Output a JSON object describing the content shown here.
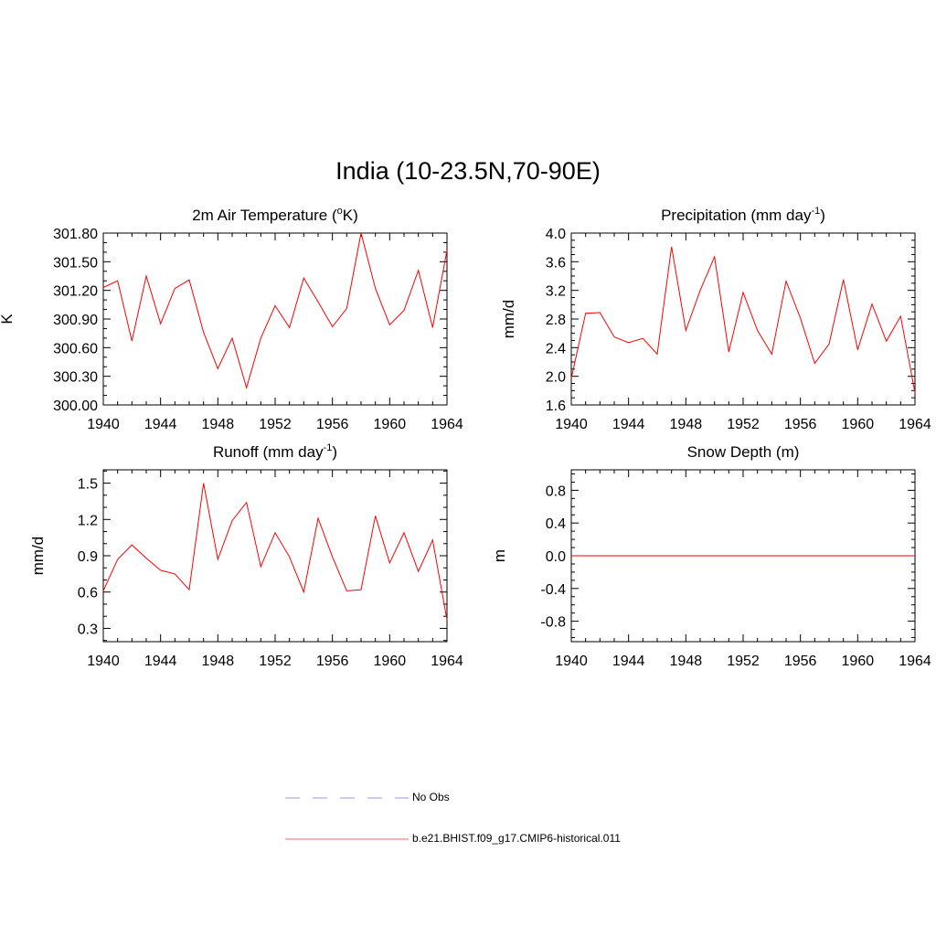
{
  "figure_title": "India (10-23.5N,70-90E)",
  "legend": [
    {
      "label": "No Obs",
      "color": "#aaaaee",
      "dash": true
    },
    {
      "label": "b.e21.BHIST.f09_g17.CMIP6-historical.011",
      "color": "#ee8888",
      "dash": false
    }
  ],
  "chart_data": [
    {
      "type": "line",
      "title": "2m Air Temperature (",
      "title_sup": "o",
      "title_tail": "K)",
      "ylabel": "K",
      "xlim": [
        1940,
        1964
      ],
      "ylim": [
        300.0,
        301.8
      ],
      "xticks": [
        1940,
        1944,
        1948,
        1952,
        1956,
        1960,
        1964
      ],
      "yticks": [
        300.0,
        300.3,
        300.6,
        300.9,
        301.2,
        301.5,
        301.8
      ],
      "ytick_labels": [
        "300.00",
        "300.30",
        "300.60",
        "300.90",
        "301.20",
        "301.50",
        "301.80"
      ],
      "yminor": 0.1,
      "color": "#ff0000",
      "series": [
        {
          "x": [
            1940,
            1941,
            1942,
            1943,
            1944,
            1945,
            1946,
            1947,
            1948,
            1949,
            1950,
            1951,
            1952,
            1953,
            1954,
            1955,
            1956,
            1957,
            1958,
            1959,
            1960,
            1961,
            1962,
            1963,
            1964
          ],
          "values": [
            301.23,
            301.3,
            300.67,
            301.35,
            300.85,
            301.22,
            301.31,
            300.76,
            300.38,
            300.7,
            300.18,
            300.7,
            301.04,
            300.81,
            301.33,
            301.08,
            300.82,
            301.01,
            301.8,
            301.22,
            300.84,
            300.99,
            301.41,
            300.81,
            301.62
          ]
        }
      ]
    },
    {
      "type": "line",
      "title": "Precipitation (mm day",
      "title_sup": "-1",
      "title_tail": ")",
      "ylabel": "mm/d",
      "xlim": [
        1940,
        1964
      ],
      "ylim": [
        1.6,
        4.0
      ],
      "xticks": [
        1940,
        1944,
        1948,
        1952,
        1956,
        1960,
        1964
      ],
      "yticks": [
        1.6,
        2.0,
        2.4,
        2.8,
        3.2,
        3.6,
        4.0
      ],
      "ytick_labels": [
        "1.6",
        "2.0",
        "2.4",
        "2.8",
        "3.2",
        "3.6",
        "4.0"
      ],
      "yminor": 0.1,
      "color": "#ff0000",
      "series": [
        {
          "x": [
            1940,
            1941,
            1942,
            1943,
            1944,
            1945,
            1946,
            1947,
            1948,
            1949,
            1950,
            1951,
            1952,
            1953,
            1954,
            1955,
            1956,
            1957,
            1958,
            1959,
            1960,
            1961,
            1962,
            1963,
            1964
          ],
          "values": [
            1.97,
            2.88,
            2.89,
            2.55,
            2.47,
            2.53,
            2.31,
            3.81,
            2.64,
            3.2,
            3.67,
            2.34,
            3.17,
            2.64,
            2.31,
            3.33,
            2.81,
            2.18,
            2.45,
            3.35,
            2.37,
            3.01,
            2.49,
            2.84,
            1.77
          ]
        }
      ]
    },
    {
      "type": "line",
      "title": "Runoff (mm day",
      "title_sup": "-1",
      "title_tail": ")",
      "ylabel": "mm/d",
      "xlim": [
        1940,
        1964
      ],
      "ylim": [
        0.19,
        1.61
      ],
      "xticks": [
        1940,
        1944,
        1948,
        1952,
        1956,
        1960,
        1964
      ],
      "yticks": [
        0.3,
        0.6,
        0.9,
        1.2,
        1.5
      ],
      "ytick_labels": [
        "0.3",
        "0.6",
        "0.9",
        "1.2",
        "1.5"
      ],
      "yminor": 0.1,
      "color": "#ff0000",
      "series": [
        {
          "x": [
            1940,
            1941,
            1942,
            1943,
            1944,
            1945,
            1946,
            1947,
            1948,
            1949,
            1950,
            1951,
            1952,
            1953,
            1954,
            1955,
            1956,
            1957,
            1958,
            1959,
            1960,
            1961,
            1962,
            1963,
            1964
          ],
          "values": [
            0.61,
            0.87,
            0.99,
            0.88,
            0.78,
            0.75,
            0.62,
            1.5,
            0.87,
            1.19,
            1.34,
            0.81,
            1.09,
            0.89,
            0.6,
            1.21,
            0.89,
            0.61,
            0.62,
            1.23,
            0.84,
            1.09,
            0.77,
            1.03,
            0.37
          ]
        }
      ]
    },
    {
      "type": "line",
      "title": "Snow Depth (m)",
      "title_sup": "",
      "title_tail": "",
      "ylabel": "m",
      "xlim": [
        1940,
        1964
      ],
      "ylim": [
        -1.05,
        1.05
      ],
      "xticks": [
        1940,
        1944,
        1948,
        1952,
        1956,
        1960,
        1964
      ],
      "yticks": [
        -0.8,
        -0.4,
        0.0,
        0.4,
        0.8
      ],
      "ytick_labels": [
        "-0.8",
        "-0.4",
        "0.0",
        "0.4",
        "0.8"
      ],
      "yminor": 0.1,
      "color": "#ff0000",
      "series": [
        {
          "x": [
            1940,
            1964
          ],
          "values": [
            0.0,
            0.0
          ]
        }
      ]
    }
  ]
}
